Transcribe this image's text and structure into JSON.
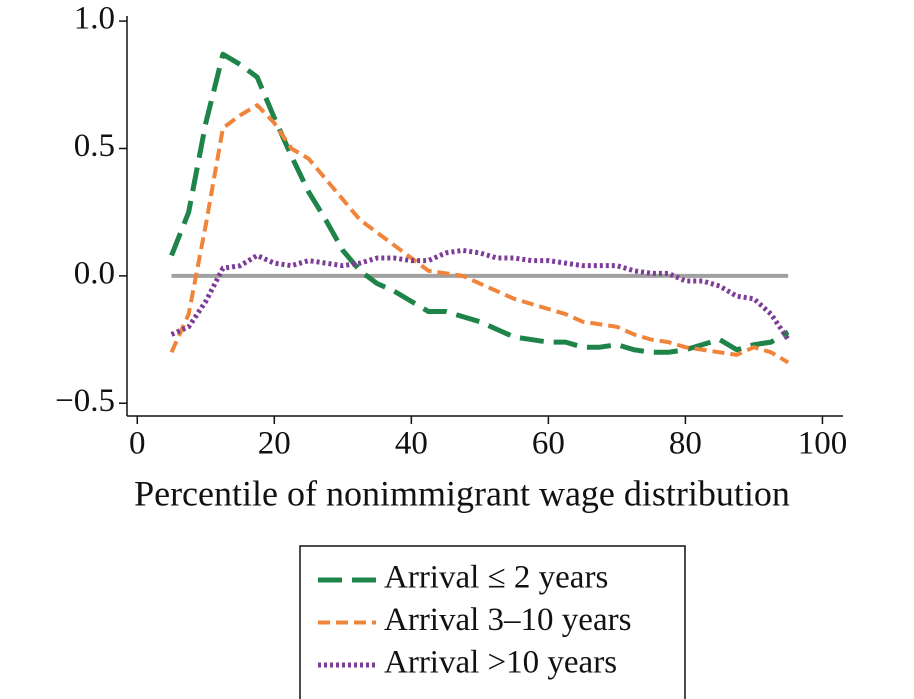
{
  "chart_data": {
    "type": "line",
    "xlabel": "Percentile of nonimmigrant wage distribution",
    "x": [
      5,
      7.5,
      10,
      12.5,
      15,
      17.5,
      20,
      22.5,
      25,
      27.5,
      30,
      32.5,
      35,
      37.5,
      40,
      42.5,
      45,
      47.5,
      50,
      52.5,
      55,
      57.5,
      60,
      62.5,
      65,
      67.5,
      70,
      72.5,
      75,
      77.5,
      80,
      82.5,
      85,
      87.5,
      90,
      92.5,
      95
    ],
    "series": [
      {
        "name": "Arrival ≤ 2 years",
        "color": "#1e8449",
        "style": "dashed",
        "values": [
          0.08,
          0.25,
          0.6,
          0.87,
          0.83,
          0.78,
          0.62,
          0.47,
          0.33,
          0.22,
          0.1,
          0.02,
          -0.03,
          -0.06,
          -0.1,
          -0.14,
          -0.14,
          -0.16,
          -0.18,
          -0.21,
          -0.24,
          -0.25,
          -0.26,
          -0.26,
          -0.28,
          -0.28,
          -0.27,
          -0.29,
          -0.3,
          -0.3,
          -0.29,
          -0.27,
          -0.25,
          -0.29,
          -0.27,
          -0.26,
          -0.22
        ]
      },
      {
        "name": "Arrival 3–10 years",
        "color": "#f0843a",
        "style": "short-dashed",
        "values": [
          -0.3,
          -0.15,
          0.2,
          0.58,
          0.63,
          0.67,
          0.6,
          0.5,
          0.46,
          0.38,
          0.3,
          0.22,
          0.17,
          0.12,
          0.07,
          0.02,
          0.01,
          0.0,
          -0.03,
          -0.06,
          -0.09,
          -0.11,
          -0.13,
          -0.15,
          -0.18,
          -0.19,
          -0.2,
          -0.23,
          -0.25,
          -0.26,
          -0.28,
          -0.29,
          -0.3,
          -0.31,
          -0.28,
          -0.3,
          -0.34
        ]
      },
      {
        "name": "Arrival >10 years",
        "color": "#7d3c98",
        "style": "dotted",
        "values": [
          -0.23,
          -0.2,
          -0.1,
          0.03,
          0.04,
          0.08,
          0.05,
          0.04,
          0.06,
          0.05,
          0.04,
          0.05,
          0.07,
          0.07,
          0.06,
          0.06,
          0.09,
          0.1,
          0.09,
          0.07,
          0.07,
          0.06,
          0.06,
          0.05,
          0.04,
          0.04,
          0.04,
          0.02,
          0.01,
          0.01,
          -0.02,
          -0.02,
          -0.04,
          -0.08,
          -0.09,
          -0.15,
          -0.25
        ]
      }
    ],
    "hline": {
      "value": 0,
      "color": "#a0a0a0"
    },
    "xlim": [
      -1.5,
      103
    ],
    "xticks": [
      0,
      20,
      40,
      60,
      80,
      100
    ],
    "ylim": [
      -0.55,
      1.02
    ],
    "yticks": [
      {
        "value": -0.5,
        "label": "−0.5"
      },
      {
        "value": 0,
        "label": "0.0"
      },
      0.5,
      {
        "value": 1,
        "label": "1.0"
      }
    ],
    "legend": "bottom"
  }
}
